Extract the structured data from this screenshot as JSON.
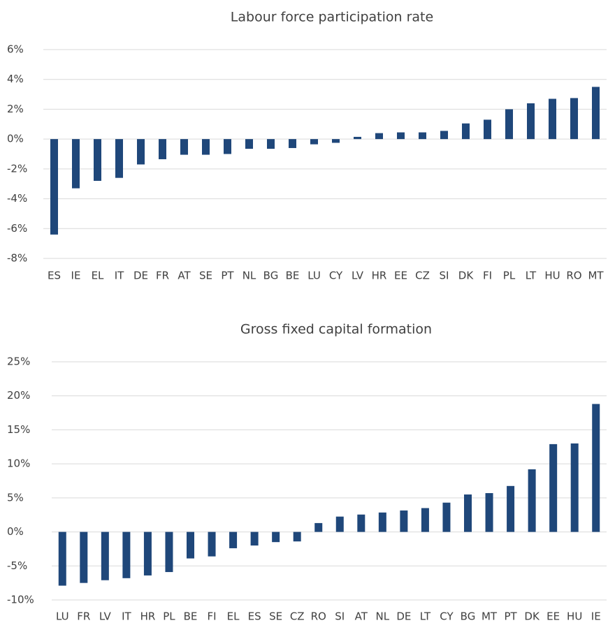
{
  "chart_data": [
    {
      "type": "bar",
      "title": "Labour force participation rate",
      "categories": [
        "ES",
        "IE",
        "EL",
        "IT",
        "DE",
        "FR",
        "AT",
        "SE",
        "PT",
        "NL",
        "BG",
        "BE",
        "LU",
        "CY",
        "LV",
        "HR",
        "EE",
        "CZ",
        "SI",
        "DK",
        "FI",
        "PL",
        "LT",
        "HU",
        "RO",
        "MT"
      ],
      "values": [
        -6.4,
        -3.3,
        -2.8,
        -2.6,
        -1.7,
        -1.35,
        -1.05,
        -1.05,
        -1.0,
        -0.65,
        -0.65,
        -0.6,
        -0.35,
        -0.25,
        0.15,
        0.4,
        0.45,
        0.45,
        0.55,
        1.05,
        1.3,
        2.0,
        2.4,
        2.7,
        2.75,
        3.5
      ],
      "color": "#1f477a",
      "ylim": [
        -8,
        6
      ],
      "yticks": [
        {
          "value": -8,
          "label": "-8%"
        },
        {
          "value": -6,
          "label": "-6%"
        },
        {
          "value": -4,
          "label": "-4%"
        },
        {
          "value": -2,
          "label": "-2%"
        },
        {
          "value": 0,
          "label": "0%"
        },
        {
          "value": 2,
          "label": "2%"
        },
        {
          "value": 4,
          "label": "4%"
        },
        {
          "value": 6,
          "label": "6%"
        }
      ],
      "grid": true
    },
    {
      "type": "bar",
      "title": "Gross fixed capital formation",
      "categories": [
        "LU",
        "FR",
        "LV",
        "IT",
        "HR",
        "PL",
        "BE",
        "FI",
        "EL",
        "ES",
        "SE",
        "CZ",
        "RO",
        "SI",
        "AT",
        "NL",
        "DE",
        "LT",
        "CY",
        "BG",
        "MT",
        "PT",
        "DK",
        "EE",
        "HU",
        "IE"
      ],
      "values": [
        -7.9,
        -7.5,
        -7.1,
        -6.8,
        -6.4,
        -5.9,
        -3.9,
        -3.6,
        -2.4,
        -2.0,
        -1.5,
        -1.4,
        1.3,
        2.25,
        2.55,
        2.85,
        3.15,
        3.5,
        4.3,
        5.5,
        5.7,
        6.75,
        9.2,
        12.9,
        13.0,
        18.8
      ],
      "color": "#1f477a",
      "ylim": [
        -10,
        25
      ],
      "yticks": [
        {
          "value": -10,
          "label": "-10%"
        },
        {
          "value": -5,
          "label": "-5%"
        },
        {
          "value": 0,
          "label": "0%"
        },
        {
          "value": 5,
          "label": "5%"
        },
        {
          "value": 10,
          "label": "10%"
        },
        {
          "value": 15,
          "label": "15%"
        },
        {
          "value": 20,
          "label": "20%"
        },
        {
          "value": 25,
          "label": "25%"
        }
      ],
      "grid": true
    }
  ]
}
